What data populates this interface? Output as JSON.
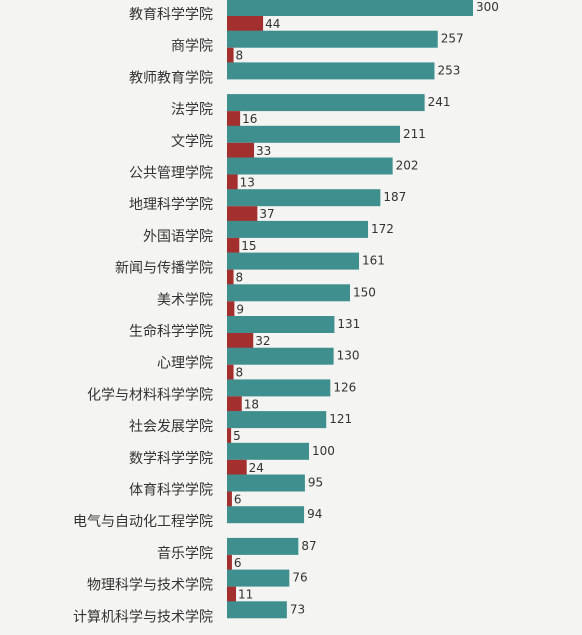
{
  "chart_data": {
    "type": "bar",
    "orientation": "horizontal",
    "colors": {
      "primary": "#3f8f8f",
      "secondary": "#a3302f",
      "background": "#f4f4f2",
      "text": "#333333"
    },
    "categories": [
      "教育科学学院",
      "商学院",
      "教师教育学院",
      "法学院",
      "文学院",
      "公共管理学院",
      "地理科学学院",
      "外国语学院",
      "新闻与传播学院",
      "美术学院",
      "生命科学学院",
      "心理学院",
      "化学与材料科学学院",
      "社会发展学院",
      "数学科学学院",
      "体育科学学院",
      "电气与自动化工程学院",
      "音乐学院",
      "物理科学与技术学院",
      "计算机科学与技术学院"
    ],
    "series": [
      {
        "values": [
          300,
          257,
          253,
          241,
          211,
          202,
          187,
          172,
          161,
          150,
          131,
          130,
          126,
          121,
          100,
          95,
          94,
          87,
          76,
          73
        ]
      },
      {
        "values": [
          44,
          8,
          null,
          16,
          33,
          13,
          37,
          15,
          8,
          9,
          32,
          8,
          18,
          5,
          24,
          6,
          null,
          6,
          11,
          null
        ]
      }
    ],
    "xlim": [
      0,
      300
    ]
  }
}
